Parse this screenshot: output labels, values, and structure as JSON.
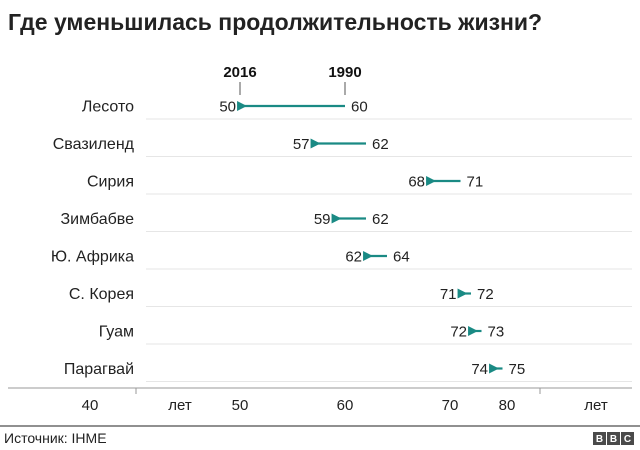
{
  "title": "Где уменьшилась продолжительность жизни?",
  "source": "Источник: IHME",
  "logo": [
    "B",
    "B",
    "C"
  ],
  "colors": {
    "arrow": "#1a8a84",
    "grid": "#e6e6e6",
    "axis": "#999999"
  },
  "chart_data": {
    "type": "dumbbell-arrow",
    "title": "Где уменьшилась продолжительность жизни?",
    "series": [
      {
        "name": "1990",
        "label": "1990"
      },
      {
        "name": "2016",
        "label": "2016"
      }
    ],
    "categories": [
      "Лесото",
      "Свазиленд",
      "Сирия",
      "Зимбабве",
      "Ю. Африка",
      "С. Корея",
      "Гуам",
      "Парагвай"
    ],
    "rows": [
      {
        "country": "Лесото",
        "y1990": 60,
        "y2016": 50,
        "label1990": "60",
        "label2016": "50"
      },
      {
        "country": "Свазиленд",
        "y1990": 62,
        "y2016": 57,
        "label1990": "62",
        "label2016": "57"
      },
      {
        "country": "Сирия",
        "y1990": 71,
        "y2016": 68,
        "label1990": "71",
        "label2016": "68"
      },
      {
        "country": "Зимбабве",
        "y1990": 62,
        "y2016": 59,
        "label1990": "62",
        "label2016": "59"
      },
      {
        "country": "Ю. Африка",
        "y1990": 64,
        "y2016": 62,
        "label1990": "64",
        "label2016": "62"
      },
      {
        "country": "С. Корея",
        "y1990": 72,
        "y2016": 71,
        "label1990": "72",
        "label2016": "71"
      },
      {
        "country": "Гуам",
        "y1990": 73,
        "y2016": 72,
        "label1990": "73",
        "label2016": "72"
      },
      {
        "country": "Парагвай",
        "y1990": 75,
        "y2016": 74,
        "label1990": "75",
        "label2016": "74"
      }
    ],
    "x_ticks": [
      {
        "value": 40,
        "label": "40"
      },
      {
        "value": 50,
        "label": "50"
      },
      {
        "value": 60,
        "label": "60"
      },
      {
        "value": 70,
        "label": "70"
      }
    ],
    "x_tick_broken_segment": {
      "value": 80,
      "label": "80"
    },
    "unit_label": "лет",
    "xlim": [
      40,
      80
    ]
  }
}
